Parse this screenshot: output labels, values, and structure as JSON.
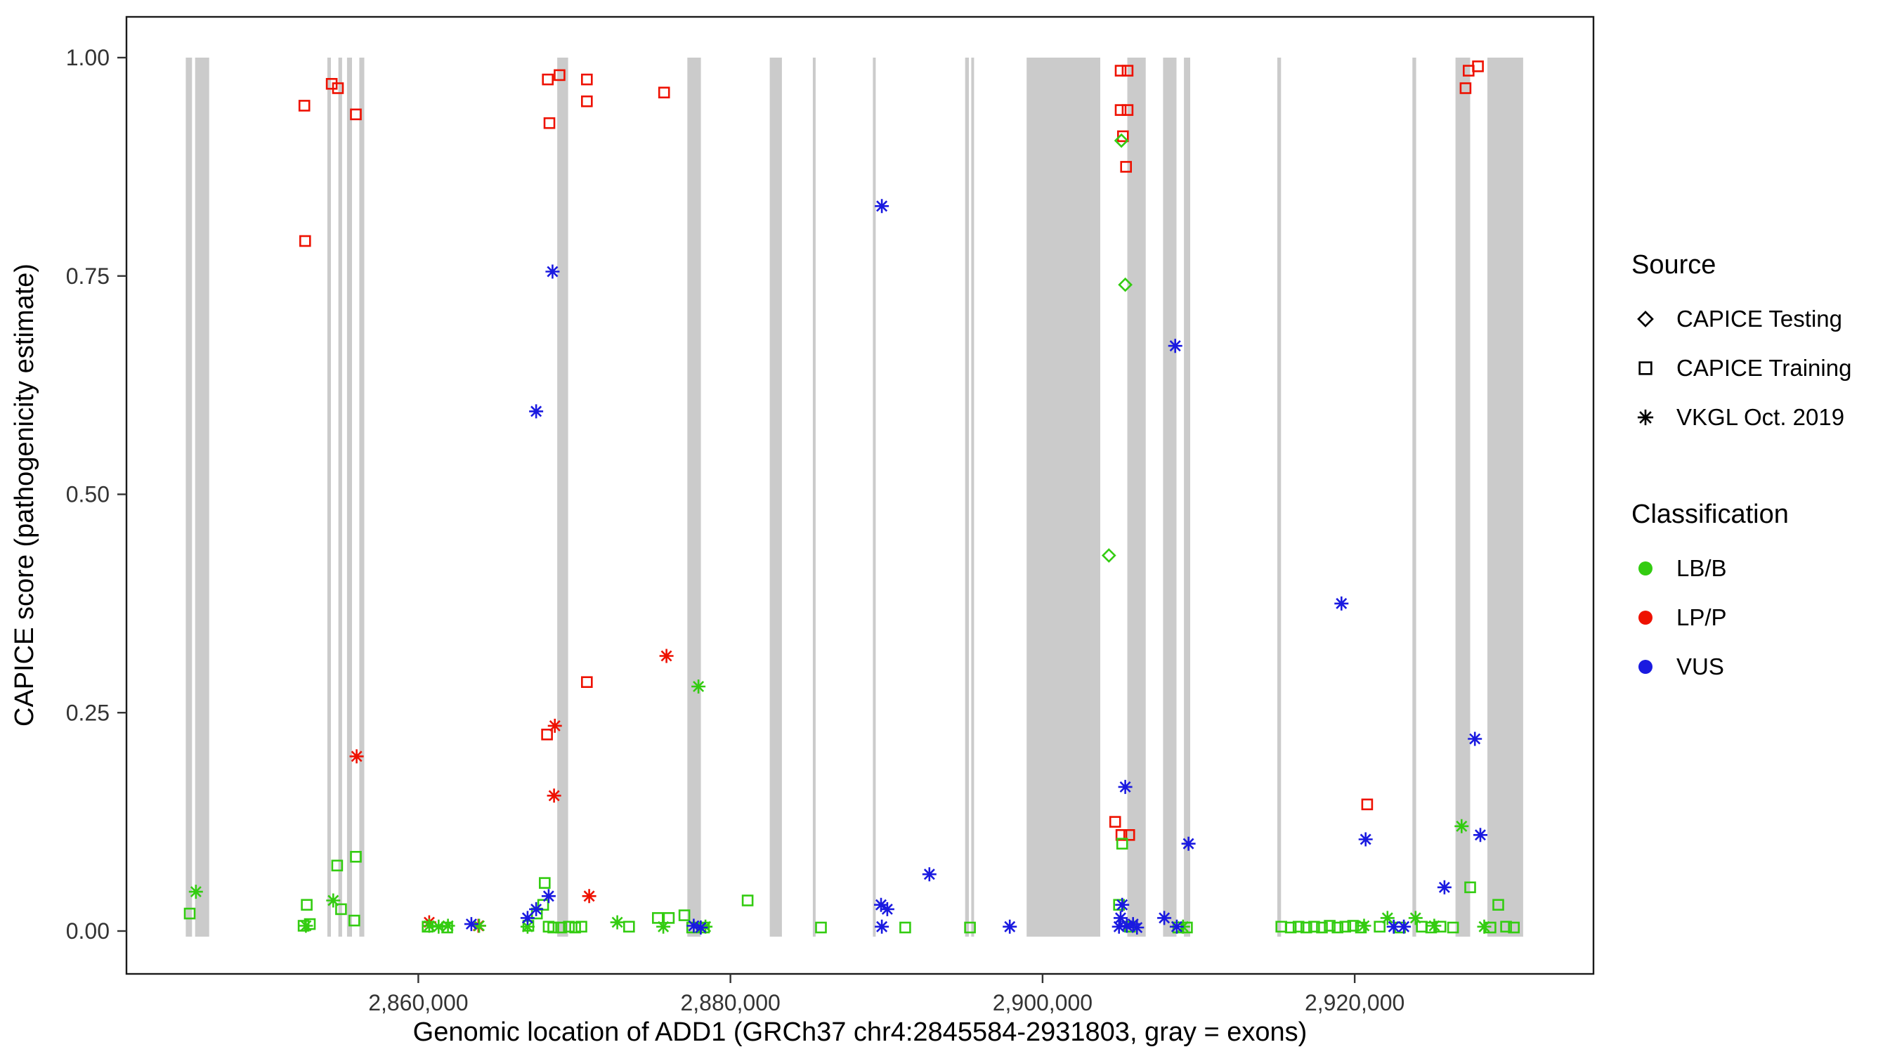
{
  "chart_data": {
    "type": "scatter",
    "title": "",
    "xlabel": "Genomic location of ADD1 (GRCh37 chr4:2845584-2931803, gray = exons)",
    "ylabel": "CAPICE score (pathogenicity estimate)",
    "xlim": [
      2841300,
      2935300
    ],
    "ylim": [
      0,
      1
    ],
    "grid": "off",
    "x_ticks": [
      {
        "value": 2860000,
        "label": "2,860,000"
      },
      {
        "value": 2880000,
        "label": "2,880,000"
      },
      {
        "value": 2900000,
        "label": "2,900,000"
      },
      {
        "value": 2920000,
        "label": "2,920,000"
      }
    ],
    "y_ticks": [
      {
        "value": 0.0,
        "label": "0.00"
      },
      {
        "value": 0.25,
        "label": "0.25"
      },
      {
        "value": 0.5,
        "label": "0.50"
      },
      {
        "value": 0.75,
        "label": "0.75"
      },
      {
        "value": 1.0,
        "label": "1.00"
      }
    ],
    "exon_color": "#cbcbcb",
    "exons": [
      [
        2845100,
        2845500
      ],
      [
        2845700,
        2846600
      ],
      [
        2854170,
        2854400
      ],
      [
        2854880,
        2855120
      ],
      [
        2855430,
        2855750
      ],
      [
        2856220,
        2856540
      ],
      [
        2868900,
        2869600
      ],
      [
        2877240,
        2878110
      ],
      [
        2882520,
        2883300
      ],
      [
        2885280,
        2885430
      ],
      [
        2889130,
        2889290
      ],
      [
        2895040,
        2895280
      ],
      [
        2895430,
        2895590
      ],
      [
        2898980,
        2903700
      ],
      [
        2905430,
        2906610
      ],
      [
        2907720,
        2908580
      ],
      [
        2909060,
        2909460
      ],
      [
        2915040,
        2915280
      ],
      [
        2923700,
        2923940
      ],
      [
        2926460,
        2927400
      ],
      [
        2928500,
        2930790
      ]
    ],
    "colors": {
      "LB/B": "#33cc11",
      "LP/P": "#ee1100",
      "VUS": "#1a1ae0"
    },
    "source_shapes": {
      "testing": "diamond",
      "training": "square",
      "vkgl": "asterisk"
    },
    "points_format": [
      "genomic_position",
      "capice_score",
      "source",
      "classification"
    ],
    "points": [
      [
        2852700,
        0.945,
        "training",
        "LP/P"
      ],
      [
        2852750,
        0.79,
        "training",
        "LP/P"
      ],
      [
        2854450,
        0.97,
        "training",
        "LP/P"
      ],
      [
        2854850,
        0.965,
        "training",
        "LP/P"
      ],
      [
        2856000,
        0.935,
        "training",
        "LP/P"
      ],
      [
        2868300,
        0.975,
        "training",
        "LP/P"
      ],
      [
        2869050,
        0.98,
        "training",
        "LP/P"
      ],
      [
        2868400,
        0.925,
        "training",
        "LP/P"
      ],
      [
        2870800,
        0.975,
        "training",
        "LP/P"
      ],
      [
        2870800,
        0.95,
        "training",
        "LP/P"
      ],
      [
        2875750,
        0.96,
        "training",
        "LP/P"
      ],
      [
        2870800,
        0.285,
        "training",
        "LP/P"
      ],
      [
        2868250,
        0.225,
        "training",
        "LP/P"
      ],
      [
        2905000,
        0.985,
        "training",
        "LP/P"
      ],
      [
        2905450,
        0.985,
        "training",
        "LP/P"
      ],
      [
        2905000,
        0.94,
        "training",
        "LP/P"
      ],
      [
        2905450,
        0.94,
        "training",
        "LP/P"
      ],
      [
        2905150,
        0.91,
        "training",
        "LP/P"
      ],
      [
        2905350,
        0.875,
        "training",
        "LP/P"
      ],
      [
        2904650,
        0.125,
        "training",
        "LP/P"
      ],
      [
        2905050,
        0.11,
        "training",
        "LP/P"
      ],
      [
        2905550,
        0.11,
        "training",
        "LP/P"
      ],
      [
        2920800,
        0.145,
        "training",
        "LP/P"
      ],
      [
        2927100,
        0.965,
        "training",
        "LP/P"
      ],
      [
        2927300,
        0.985,
        "training",
        "LP/P"
      ],
      [
        2927900,
        0.99,
        "training",
        "LP/P"
      ],
      [
        2856050,
        0.2,
        "vkgl",
        "LP/P"
      ],
      [
        2868750,
        0.235,
        "vkgl",
        "LP/P"
      ],
      [
        2868700,
        0.155,
        "vkgl",
        "LP/P"
      ],
      [
        2870950,
        0.04,
        "vkgl",
        "LP/P"
      ],
      [
        2875900,
        0.315,
        "vkgl",
        "LP/P"
      ],
      [
        2860700,
        0.01,
        "vkgl",
        "LP/P"
      ],
      [
        2863850,
        0.006,
        "vkgl",
        "LP/P"
      ],
      [
        2905050,
        0.905,
        "testing",
        "LB/B"
      ],
      [
        2905300,
        0.74,
        "testing",
        "LB/B"
      ],
      [
        2904250,
        0.43,
        "testing",
        "LB/B"
      ],
      [
        2845350,
        0.02,
        "training",
        "LB/B"
      ],
      [
        2852850,
        0.03,
        "training",
        "LB/B"
      ],
      [
        2852650,
        0.006,
        "training",
        "LB/B"
      ],
      [
        2853050,
        0.008,
        "training",
        "LB/B"
      ],
      [
        2854800,
        0.075,
        "training",
        "LB/B"
      ],
      [
        2856000,
        0.085,
        "training",
        "LB/B"
      ],
      [
        2855050,
        0.025,
        "training",
        "LB/B"
      ],
      [
        2855900,
        0.012,
        "training",
        "LB/B"
      ],
      [
        2860600,
        0.005,
        "training",
        "LB/B"
      ],
      [
        2861850,
        0.004,
        "training",
        "LB/B"
      ],
      [
        2868100,
        0.055,
        "training",
        "LB/B"
      ],
      [
        2868000,
        0.03,
        "training",
        "LB/B"
      ],
      [
        2867600,
        0.02,
        "training",
        "LB/B"
      ],
      [
        2867050,
        0.006,
        "training",
        "LB/B"
      ],
      [
        2868350,
        0.005,
        "training",
        "LB/B"
      ],
      [
        2868650,
        0.004,
        "training",
        "LB/B"
      ],
      [
        2869150,
        0.004,
        "training",
        "LB/B"
      ],
      [
        2869650,
        0.005,
        "training",
        "LB/B"
      ],
      [
        2870050,
        0.004,
        "training",
        "LB/B"
      ],
      [
        2870450,
        0.005,
        "training",
        "LB/B"
      ],
      [
        2873500,
        0.005,
        "training",
        "LB/B"
      ],
      [
        2875350,
        0.015,
        "training",
        "LB/B"
      ],
      [
        2876050,
        0.015,
        "training",
        "LB/B"
      ],
      [
        2877050,
        0.018,
        "training",
        "LB/B"
      ],
      [
        2877550,
        0.004,
        "training",
        "LB/B"
      ],
      [
        2878300,
        0.004,
        "training",
        "LB/B"
      ],
      [
        2881100,
        0.035,
        "training",
        "LB/B"
      ],
      [
        2885800,
        0.004,
        "training",
        "LB/B"
      ],
      [
        2891200,
        0.004,
        "training",
        "LB/B"
      ],
      [
        2895350,
        0.004,
        "training",
        "LB/B"
      ],
      [
        2905100,
        0.1,
        "training",
        "LB/B"
      ],
      [
        2904900,
        0.03,
        "training",
        "LB/B"
      ],
      [
        2905600,
        0.005,
        "training",
        "LB/B"
      ],
      [
        2908700,
        0.004,
        "training",
        "LB/B"
      ],
      [
        2909250,
        0.004,
        "training",
        "LB/B"
      ],
      [
        2915300,
        0.005,
        "training",
        "LB/B"
      ],
      [
        2915900,
        0.004,
        "training",
        "LB/B"
      ],
      [
        2916400,
        0.005,
        "training",
        "LB/B"
      ],
      [
        2916900,
        0.004,
        "training",
        "LB/B"
      ],
      [
        2917400,
        0.005,
        "training",
        "LB/B"
      ],
      [
        2917900,
        0.004,
        "training",
        "LB/B"
      ],
      [
        2918400,
        0.006,
        "training",
        "LB/B"
      ],
      [
        2918900,
        0.004,
        "training",
        "LB/B"
      ],
      [
        2919400,
        0.005,
        "training",
        "LB/B"
      ],
      [
        2919900,
        0.006,
        "training",
        "LB/B"
      ],
      [
        2920400,
        0.004,
        "training",
        "LB/B"
      ],
      [
        2921600,
        0.005,
        "training",
        "LB/B"
      ],
      [
        2922900,
        0.004,
        "training",
        "LB/B"
      ],
      [
        2924300,
        0.005,
        "training",
        "LB/B"
      ],
      [
        2924900,
        0.004,
        "training",
        "LB/B"
      ],
      [
        2925500,
        0.005,
        "training",
        "LB/B"
      ],
      [
        2926300,
        0.004,
        "training",
        "LB/B"
      ],
      [
        2927400,
        0.05,
        "training",
        "LB/B"
      ],
      [
        2928700,
        0.004,
        "training",
        "LB/B"
      ],
      [
        2929200,
        0.03,
        "training",
        "LB/B"
      ],
      [
        2929700,
        0.005,
        "training",
        "LB/B"
      ],
      [
        2930200,
        0.004,
        "training",
        "LB/B"
      ],
      [
        2845750,
        0.045,
        "vkgl",
        "LB/B"
      ],
      [
        2852800,
        0.006,
        "vkgl",
        "LB/B"
      ],
      [
        2854550,
        0.035,
        "vkgl",
        "LB/B"
      ],
      [
        2860700,
        0.006,
        "vkgl",
        "LB/B"
      ],
      [
        2861300,
        0.005,
        "vkgl",
        "LB/B"
      ],
      [
        2861900,
        0.006,
        "vkgl",
        "LB/B"
      ],
      [
        2863900,
        0.006,
        "vkgl",
        "LB/B"
      ],
      [
        2867000,
        0.005,
        "vkgl",
        "LB/B"
      ],
      [
        2872750,
        0.01,
        "vkgl",
        "LB/B"
      ],
      [
        2877950,
        0.28,
        "vkgl",
        "LB/B"
      ],
      [
        2875700,
        0.005,
        "vkgl",
        "LB/B"
      ],
      [
        2878400,
        0.005,
        "vkgl",
        "LB/B"
      ],
      [
        2909000,
        0.005,
        "vkgl",
        "LB/B"
      ],
      [
        2920600,
        0.006,
        "vkgl",
        "LB/B"
      ],
      [
        2922100,
        0.015,
        "vkgl",
        "LB/B"
      ],
      [
        2923900,
        0.015,
        "vkgl",
        "LB/B"
      ],
      [
        2926850,
        0.12,
        "vkgl",
        "LB/B"
      ],
      [
        2925100,
        0.006,
        "vkgl",
        "LB/B"
      ],
      [
        2928300,
        0.005,
        "vkgl",
        "LB/B"
      ],
      [
        2868600,
        0.755,
        "vkgl",
        "VUS"
      ],
      [
        2867550,
        0.595,
        "vkgl",
        "VUS"
      ],
      [
        2889700,
        0.83,
        "vkgl",
        "VUS"
      ],
      [
        2908500,
        0.67,
        "vkgl",
        "VUS"
      ],
      [
        2919150,
        0.375,
        "vkgl",
        "VUS"
      ],
      [
        2920700,
        0.105,
        "vkgl",
        "VUS"
      ],
      [
        2909350,
        0.1,
        "vkgl",
        "VUS"
      ],
      [
        2905300,
        0.165,
        "vkgl",
        "VUS"
      ],
      [
        2927700,
        0.22,
        "vkgl",
        "VUS"
      ],
      [
        2928050,
        0.11,
        "vkgl",
        "VUS"
      ],
      [
        2925750,
        0.05,
        "vkgl",
        "VUS"
      ],
      [
        2892750,
        0.065,
        "vkgl",
        "VUS"
      ],
      [
        2889650,
        0.03,
        "vkgl",
        "VUS"
      ],
      [
        2890050,
        0.025,
        "vkgl",
        "VUS"
      ],
      [
        2889700,
        0.005,
        "vkgl",
        "VUS"
      ],
      [
        2897900,
        0.005,
        "vkgl",
        "VUS"
      ],
      [
        2868350,
        0.04,
        "vkgl",
        "VUS"
      ],
      [
        2867550,
        0.025,
        "vkgl",
        "VUS"
      ],
      [
        2867000,
        0.015,
        "vkgl",
        "VUS"
      ],
      [
        2877650,
        0.006,
        "vkgl",
        "VUS"
      ],
      [
        2905100,
        0.03,
        "vkgl",
        "VUS"
      ],
      [
        2905000,
        0.015,
        "vkgl",
        "VUS"
      ],
      [
        2904900,
        0.005,
        "vkgl",
        "VUS"
      ],
      [
        2905400,
        0.006,
        "vkgl",
        "VUS"
      ],
      [
        2905800,
        0.008,
        "vkgl",
        "VUS"
      ],
      [
        2906050,
        0.004,
        "vkgl",
        "VUS"
      ],
      [
        2907800,
        0.015,
        "vkgl",
        "VUS"
      ],
      [
        2908600,
        0.005,
        "vkgl",
        "VUS"
      ],
      [
        2922500,
        0.005,
        "vkgl",
        "VUS"
      ],
      [
        2923150,
        0.005,
        "vkgl",
        "VUS"
      ],
      [
        2878100,
        0.004,
        "vkgl",
        "VUS"
      ],
      [
        2863400,
        0.008,
        "vkgl",
        "VUS"
      ]
    ]
  },
  "legend": {
    "source": {
      "title": "Source",
      "items": [
        {
          "label": "CAPICE Testing",
          "shape": "diamond"
        },
        {
          "label": "CAPICE Training",
          "shape": "square"
        },
        {
          "label": "VKGL Oct. 2019",
          "shape": "asterisk"
        }
      ]
    },
    "classification": {
      "title": "Classification",
      "items": [
        {
          "label": "LB/B",
          "color": "#33cc11"
        },
        {
          "label": "LP/P",
          "color": "#ee1100"
        },
        {
          "label": "VUS",
          "color": "#1a1ae0"
        }
      ]
    }
  }
}
